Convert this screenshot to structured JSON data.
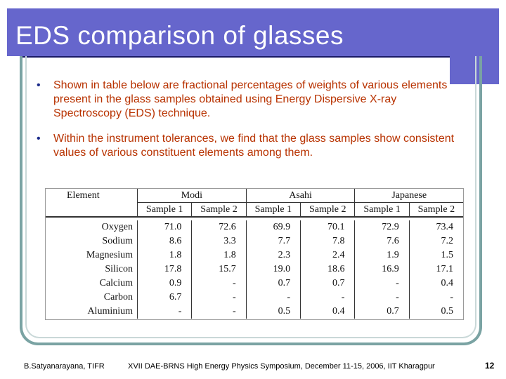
{
  "slide": {
    "title": "EDS comparison of glasses",
    "bullets": [
      "Shown in table below are fractional percentages of weights of various elements present in the glass samples obtained using Energy Dispersive X-ray Spectroscopy (EDS) technique.",
      "Within the instrument tolerances, we find that the glass samples show consistent values of various constituent elements among them."
    ],
    "bullet_symbol": "•"
  },
  "table": {
    "element_header": "Element",
    "groups": [
      "Modi",
      "Asahi",
      "Japanese"
    ],
    "sample_headers": [
      "Sample 1",
      "Sample 2",
      "Sample 1",
      "Sample 2",
      "Sample 1",
      "Sample 2"
    ],
    "rows": [
      {
        "element": "Oxygen",
        "values": [
          "71.0",
          "72.6",
          "69.9",
          "70.1",
          "72.9",
          "73.4"
        ]
      },
      {
        "element": "Sodium",
        "values": [
          "8.6",
          "3.3",
          "7.7",
          "7.8",
          "7.6",
          "7.2"
        ]
      },
      {
        "element": "Magnesium",
        "values": [
          "1.8",
          "1.8",
          "2.3",
          "2.4",
          "1.9",
          "1.5"
        ]
      },
      {
        "element": "Silicon",
        "values": [
          "17.8",
          "15.7",
          "19.0",
          "18.6",
          "16.9",
          "17.1"
        ]
      },
      {
        "element": "Calcium",
        "values": [
          "0.9",
          "-",
          "0.7",
          "0.7",
          "-",
          "0.4"
        ]
      },
      {
        "element": "Carbon",
        "values": [
          "6.7",
          "-",
          "-",
          "-",
          "-",
          "-"
        ]
      },
      {
        "element": "Aluminium",
        "values": [
          "-",
          "-",
          "0.5",
          "0.4",
          "0.7",
          "0.5"
        ]
      }
    ]
  },
  "footer": {
    "author": "B.Satyanarayana, TIFR",
    "event": "XVII DAE-BRNS High Energy Physics Symposium, December 11-15, 2006, IIT Kharagpur",
    "page_number": "12"
  },
  "colors": {
    "title_bar": "#6666cc",
    "bullet_text": "#b83200",
    "frame": "#7aa3a3"
  }
}
